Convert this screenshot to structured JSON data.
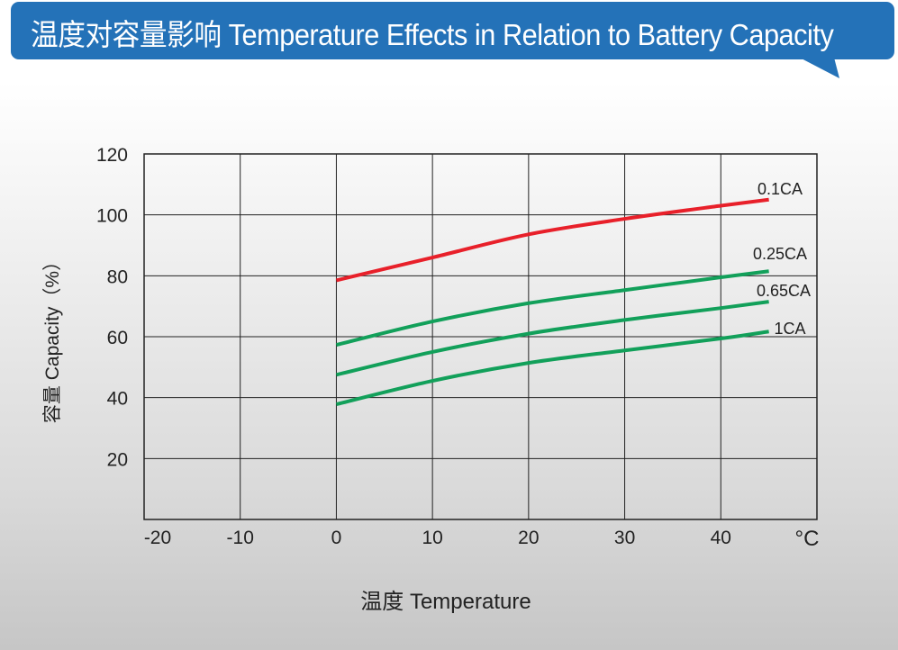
{
  "header": {
    "title": "温度对容量影响 Temperature Effects in Relation to Battery Capacity",
    "color": "#2472b8"
  },
  "chart_data": {
    "type": "line",
    "title": "温度对容量影响 Temperature Effects in Relation to Battery Capacity",
    "xlabel": "温度  Temperature",
    "ylabel": "容量  Capacity（%）",
    "x_unit": "°C",
    "xlim": [
      -20,
      50
    ],
    "ylim": [
      0,
      120
    ],
    "xticks": [
      -20,
      -10,
      0,
      10,
      20,
      30,
      40
    ],
    "yticks": [
      20,
      40,
      60,
      80,
      100,
      120
    ],
    "grid": true,
    "series": [
      {
        "name": "0.1CA",
        "color": "#e8202a",
        "x": [
          0,
          10,
          20,
          30,
          40,
          45
        ],
        "y": [
          78.5,
          86,
          93.6,
          98.7,
          103,
          105
        ]
      },
      {
        "name": "0.25CA",
        "color": "#12a05a",
        "x": [
          0,
          10,
          20,
          30,
          40,
          45
        ],
        "y": [
          57.3,
          65,
          71,
          75.3,
          79.5,
          81.5
        ]
      },
      {
        "name": "0.65CA",
        "color": "#12a05a",
        "x": [
          0,
          10,
          20,
          30,
          40,
          45
        ],
        "y": [
          47.5,
          55,
          61,
          65.5,
          69.4,
          71.5
        ]
      },
      {
        "name": "1CA",
        "color": "#12a05a",
        "x": [
          0,
          10,
          20,
          30,
          40,
          45
        ],
        "y": [
          37.8,
          45.5,
          51.4,
          55.5,
          59.4,
          61.7
        ]
      }
    ]
  }
}
